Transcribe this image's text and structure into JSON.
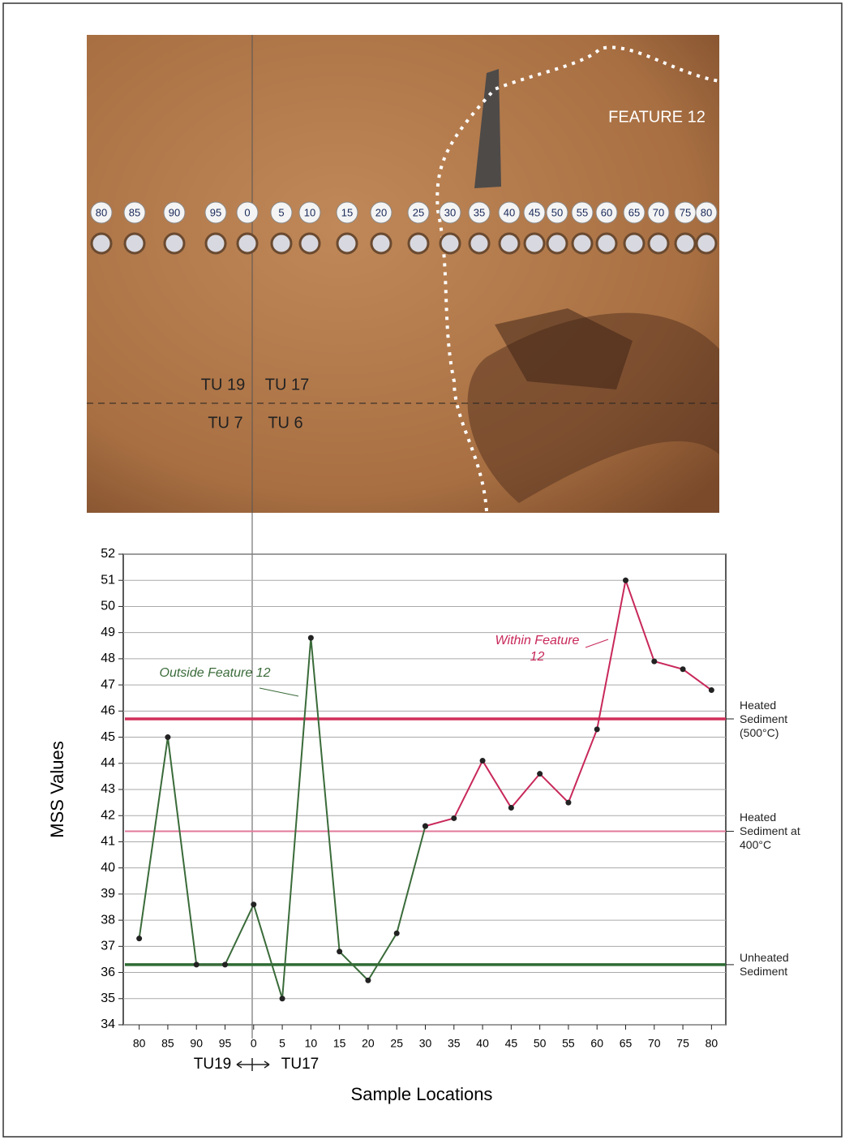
{
  "photo": {
    "feature_label": "FEATURE 12",
    "unit_labels": [
      "TU 19",
      "TU 17",
      "TU 7",
      "TU 6"
    ]
  },
  "chart_data": {
    "type": "line",
    "y_label": "MSS Values",
    "x_label": "Sample Locations",
    "x_sublabels": [
      "TU19",
      "TU17"
    ],
    "categories": [
      "80",
      "85",
      "90",
      "95",
      "0",
      "5",
      "10",
      "15",
      "20",
      "25",
      "30",
      "35",
      "40",
      "45",
      "50",
      "55",
      "60",
      "65",
      "70",
      "75",
      "80"
    ],
    "series": [
      {
        "name": "Outside Feature 12",
        "color": "#3a6b3a",
        "values": [
          37.3,
          45.0,
          36.3,
          36.3,
          38.6,
          35.0,
          48.8,
          36.8,
          35.7,
          37.5,
          41.6,
          null,
          null,
          null,
          null,
          null,
          null,
          null,
          null,
          null,
          null
        ]
      },
      {
        "name": "Within Feature 12",
        "color": "#c8285a",
        "values": [
          null,
          null,
          null,
          null,
          null,
          null,
          null,
          null,
          null,
          null,
          41.6,
          41.9,
          44.1,
          42.3,
          43.6,
          42.5,
          45.3,
          51.0,
          47.9,
          47.6,
          46.8
        ]
      }
    ],
    "reference_lines": [
      {
        "value": 45.7,
        "label": "Heated Sediment (500°C)",
        "color": "#d0305a"
      },
      {
        "value": 41.4,
        "label": "Heated Sediment at 400°C",
        "color": "#e27a9a"
      },
      {
        "value": 36.3,
        "label": "Unheated Sediment",
        "color": "#2e6b34"
      }
    ],
    "ylim": [
      34,
      52
    ],
    "yticks": [
      34,
      35,
      36,
      37,
      38,
      39,
      40,
      41,
      42,
      43,
      44,
      45,
      46,
      47,
      48,
      49,
      50,
      51,
      52
    ],
    "grid": true
  }
}
